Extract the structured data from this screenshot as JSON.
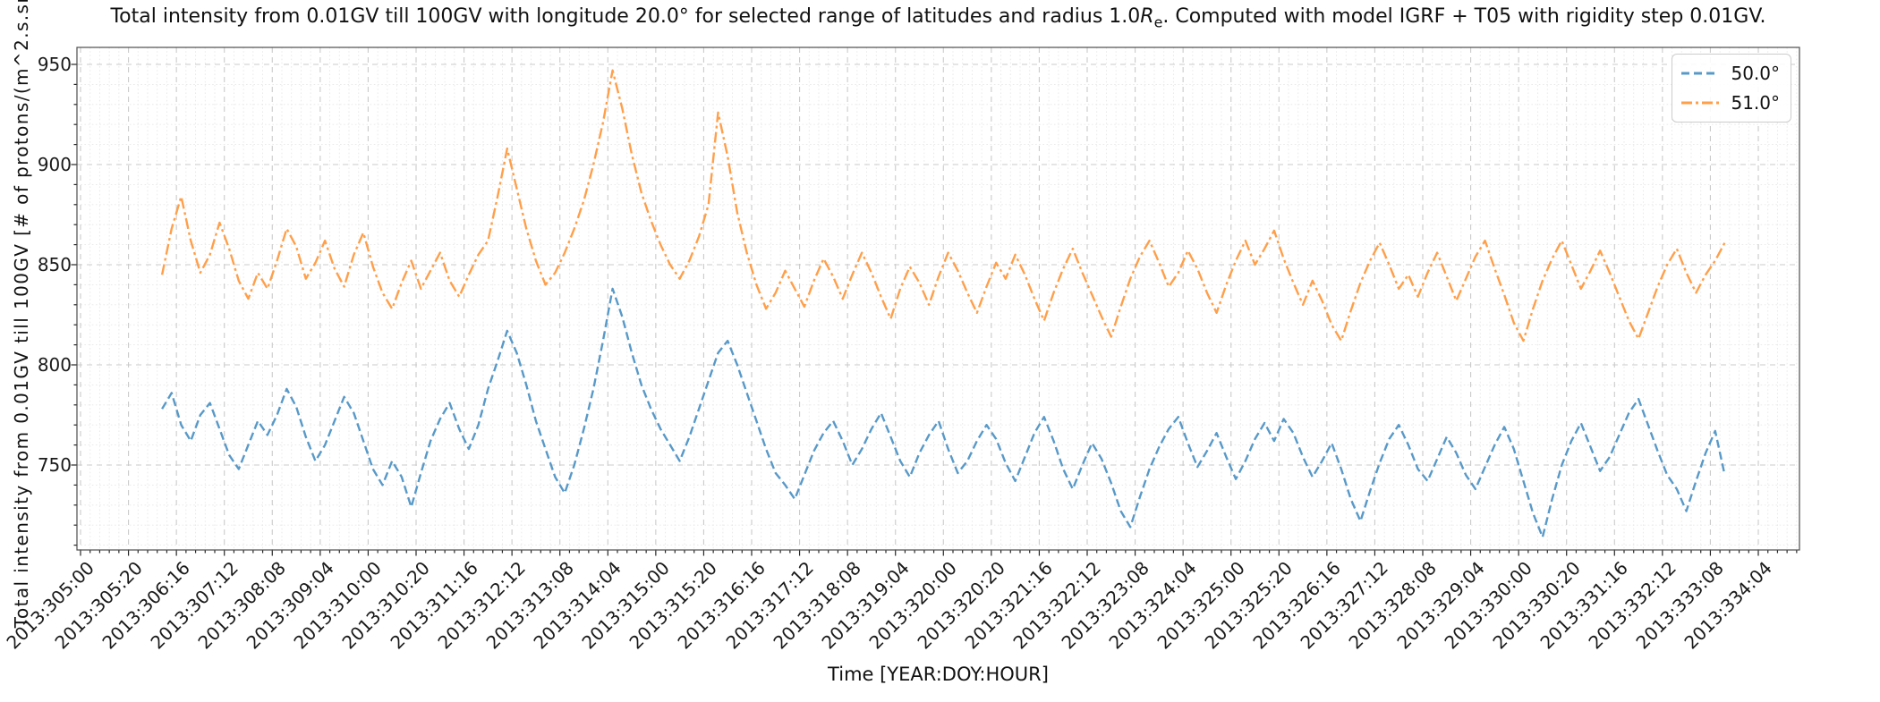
{
  "figure": {
    "title_pre": "Total intensity from 0.01GV till 100GV with longitude 20.0° for selected range of latitudes and radius 1.0",
    "title_math_r": "R",
    "title_math_sub": "e",
    "title_post": ". Computed with model IGRF + T05 with rigidity step 0.01GV."
  },
  "axes": {
    "xlabel": "Time [YEAR:DOY:HOUR]",
    "ylabel_visible": "Total intensity from 0.01GV till 100GV [# of protons/(m^2.s.sr"
  },
  "chart_data": {
    "type": "line",
    "title": "Total intensity from 0.01GV till 100GV with longitude 20.0° for selected range of latitudes and radius 1.0Re. Computed with model IGRF + T05 with rigidity step 0.01GV.",
    "xlabel": "Time [YEAR:DOY:HOUR]",
    "ylabel": "Total intensity from 0.01GV till 100GV [# of protons/(m^2.s.sr",
    "grid": true,
    "legend_position": "upper right",
    "ylim": [
      707.5,
      958.5
    ],
    "xlim_hours_since_2013_305_00": [
      -1.5,
      717.2
    ],
    "y_ticks": [
      950,
      900,
      850,
      800,
      750
    ],
    "y_minor_step": 10,
    "x_tick_step_hours": 20,
    "x_minor_step_hours": 4,
    "x_tick_labels": [
      "2013:305:00",
      "2013:305:20",
      "2013:306:16",
      "2013:307:12",
      "2013:308:08",
      "2013:309:04",
      "2013:310:00",
      "2013:310:20",
      "2013:311:16",
      "2013:312:12",
      "2013:313:08",
      "2013:314:04",
      "2013:315:00",
      "2013:315:20",
      "2013:316:16",
      "2013:317:12",
      "2013:318:08",
      "2013:319:04",
      "2013:320:00",
      "2013:320:20",
      "2013:321:16",
      "2013:322:12",
      "2013:323:08",
      "2013:324:04",
      "2013:325:00",
      "2013:325:20",
      "2013:326:16",
      "2013:327:12",
      "2013:328:08",
      "2013:329:04",
      "2013:330:00",
      "2013:330:20",
      "2013:331:16",
      "2013:332:12",
      "2013:333:08",
      "2013:334:04"
    ],
    "t0_hours": 34,
    "dt_hours": 4,
    "series": [
      {
        "name": "50.0°",
        "color": "#5899C8",
        "linestyle": "dashed",
        "values": [
          778,
          786,
          770,
          762,
          775,
          781,
          768,
          755,
          748,
          760,
          772,
          765,
          775,
          788,
          779,
          764,
          752,
          760,
          772,
          784,
          776,
          762,
          748,
          740,
          752,
          744,
          729,
          746,
          762,
          773,
          781,
          768,
          758,
          770,
          788,
          802,
          817,
          806,
          790,
          772,
          758,
          744,
          736,
          750,
          768,
          788,
          812,
          838,
          824,
          806,
          790,
          778,
          768,
          760,
          752,
          764,
          778,
          792,
          806,
          812,
          800,
          786,
          772,
          758,
          746,
          740,
          733,
          745,
          757,
          766,
          772,
          762,
          750,
          758,
          768,
          776,
          764,
          752,
          744,
          756,
          765,
          772,
          758,
          746,
          752,
          762,
          770,
          763,
          751,
          742,
          754,
          766,
          774,
          762,
          748,
          738,
          750,
          761,
          753,
          741,
          727,
          719,
          734,
          748,
          759,
          768,
          774,
          761,
          749,
          757,
          766,
          754,
          743,
          752,
          763,
          771,
          762,
          773,
          766,
          754,
          744,
          752,
          761,
          748,
          733,
          722,
          737,
          751,
          763,
          770,
          760,
          748,
          742,
          753,
          764,
          756,
          745,
          738,
          749,
          760,
          769,
          758,
          742,
          726,
          714,
          733,
          750,
          762,
          771,
          759,
          747,
          754,
          765,
          776,
          783,
          770,
          757,
          745,
          738,
          727,
          742,
          756,
          767,
          745
        ]
      },
      {
        "name": "51.0°",
        "color": "#FF9F4A",
        "linestyle": "dashdot",
        "values": [
          845,
          868,
          884,
          862,
          846,
          855,
          871,
          858,
          842,
          833,
          846,
          838,
          852,
          868,
          859,
          843,
          851,
          862,
          848,
          839,
          855,
          866,
          849,
          836,
          828,
          841,
          852,
          838,
          847,
          856,
          842,
          834,
          845,
          855,
          862,
          884,
          908,
          888,
          868,
          852,
          840,
          846,
          856,
          868,
          882,
          900,
          921,
          947,
          928,
          905,
          886,
          872,
          860,
          850,
          843,
          852,
          864,
          880,
          926,
          904,
          876,
          856,
          840,
          828,
          836,
          847,
          838,
          829,
          842,
          853,
          844,
          833,
          845,
          856,
          846,
          834,
          823,
          838,
          849,
          841,
          830,
          844,
          856,
          847,
          836,
          826,
          839,
          851,
          843,
          855,
          845,
          833,
          822,
          836,
          848,
          858,
          846,
          835,
          824,
          814,
          829,
          843,
          854,
          862,
          851,
          839,
          846,
          857,
          848,
          836,
          826,
          840,
          852,
          862,
          850,
          858,
          867,
          853,
          841,
          830,
          842,
          832,
          820,
          812,
          827,
          841,
          852,
          861,
          850,
          838,
          845,
          834,
          846,
          856,
          844,
          832,
          843,
          854,
          862,
          848,
          835,
          821,
          812,
          828,
          842,
          853,
          862,
          850,
          838,
          847,
          857,
          846,
          834,
          822,
          813,
          826,
          839,
          850,
          858,
          846,
          836,
          845,
          852,
          861
        ]
      }
    ]
  },
  "legend": {
    "items": [
      {
        "label": "50.0°",
        "color": "#5899C8",
        "linestyle": "dashed"
      },
      {
        "label": "51.0°",
        "color": "#FF9F4A",
        "linestyle": "dashdot"
      }
    ]
  }
}
